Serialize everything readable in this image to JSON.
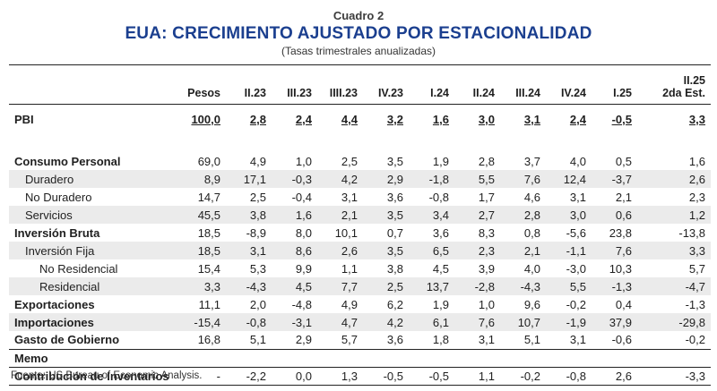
{
  "header": {
    "cuadro": "Cuadro 2",
    "title": "EUA: CRECIMIENTO AJUSTADO POR ESTACIONALIDAD",
    "subtitle": "(Tasas trimestrales anualizadas)"
  },
  "table": {
    "columns": [
      "Pesos",
      "II.23",
      "III.23",
      "IIII.23",
      "IV.23",
      "I.24",
      "II.24",
      "III.24",
      "IV.24",
      "I.25",
      "II.25"
    ],
    "last_col_line2": "2da Est.",
    "pbi": {
      "label": "PBI",
      "values": [
        "100,0",
        "2,8",
        "2,4",
        "4,4",
        "3,2",
        "1,6",
        "3,0",
        "3,1",
        "2,4",
        "-0,5",
        "3,3"
      ]
    },
    "rows": [
      {
        "label": "Consumo Personal",
        "values": [
          "69,0",
          "4,9",
          "1,0",
          "2,5",
          "3,5",
          "1,9",
          "2,8",
          "3,7",
          "4,0",
          "0,5",
          "1,6"
        ]
      },
      {
        "label": "Duradero",
        "values": [
          "8,9",
          "17,1",
          "-0,3",
          "4,2",
          "2,9",
          "-1,8",
          "5,5",
          "7,6",
          "12,4",
          "-3,7",
          "2,6"
        ]
      },
      {
        "label": "No Duradero",
        "values": [
          "14,7",
          "2,5",
          "-0,4",
          "3,1",
          "3,6",
          "-0,8",
          "1,7",
          "4,6",
          "3,1",
          "2,1",
          "2,3"
        ]
      },
      {
        "label": "Servicios",
        "values": [
          "45,5",
          "3,8",
          "1,6",
          "2,1",
          "3,5",
          "3,4",
          "2,7",
          "2,8",
          "3,0",
          "0,6",
          "1,2"
        ]
      },
      {
        "label": "Inversión Bruta",
        "values": [
          "18,5",
          "-8,9",
          "8,0",
          "10,1",
          "0,7",
          "3,6",
          "8,3",
          "0,8",
          "-5,6",
          "23,8",
          "-13,8"
        ]
      },
      {
        "label": "Inversión Fija",
        "values": [
          "18,5",
          "3,1",
          "8,6",
          "2,6",
          "3,5",
          "6,5",
          "2,3",
          "2,1",
          "-1,1",
          "7,6",
          "3,3"
        ]
      },
      {
        "label": "No Residencial",
        "values": [
          "15,4",
          "5,3",
          "9,9",
          "1,1",
          "3,8",
          "4,5",
          "3,9",
          "4,0",
          "-3,0",
          "10,3",
          "5,7"
        ]
      },
      {
        "label": "Residencial",
        "values": [
          "3,3",
          "-4,3",
          "4,5",
          "7,7",
          "2,5",
          "13,7",
          "-2,8",
          "-4,3",
          "5,5",
          "-1,3",
          "-4,7"
        ]
      },
      {
        "label": "Exportaciones",
        "values": [
          "11,1",
          "2,0",
          "-4,8",
          "4,9",
          "6,2",
          "1,9",
          "1,0",
          "9,6",
          "-0,2",
          "0,4",
          "-1,3"
        ]
      },
      {
        "label": "Importaciones",
        "values": [
          "-15,4",
          "-0,8",
          "-3,1",
          "4,7",
          "4,2",
          "6,1",
          "7,6",
          "10,7",
          "-1,9",
          "37,9",
          "-29,8"
        ]
      },
      {
        "label": "Gasto de Gobierno",
        "values": [
          "16,8",
          "5,1",
          "2,9",
          "5,7",
          "3,6",
          "1,8",
          "3,1",
          "5,1",
          "3,1",
          "-0,6",
          "-0,2"
        ]
      }
    ],
    "memo": {
      "label": "Memo"
    },
    "contrib": {
      "label": "Contribución de Inventarios",
      "values": [
        "-",
        "-2,2",
        "0,0",
        "1,3",
        "-0,5",
        "-0,5",
        "1,1",
        "-0,2",
        "-0,8",
        "2,6",
        "-3,3"
      ]
    }
  },
  "source": "Fuente: US Bureau of Economic Analysis."
}
